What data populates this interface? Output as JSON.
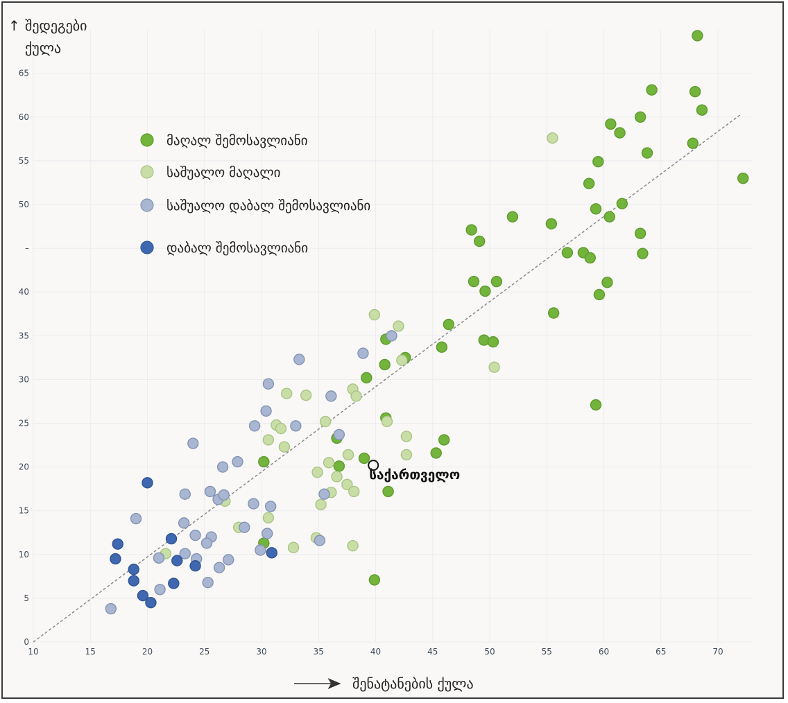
{
  "chart_data": {
    "type": "scatter",
    "title": "",
    "ylabel_line1": "შედეგები",
    "ylabel_line2": "ქულა",
    "xlabel": "შენატანების ქულა",
    "xlim": [
      10,
      73
    ],
    "ylim": [
      0,
      70
    ],
    "xticks": [
      10,
      15,
      20,
      25,
      30,
      35,
      40,
      45,
      50,
      55,
      60,
      65,
      70
    ],
    "yticks": [
      0,
      5,
      10,
      15,
      20,
      25,
      30,
      35,
      40,
      45,
      50,
      55,
      60,
      65
    ],
    "yticks_labels": [
      "0",
      "5",
      "10",
      "15",
      "20",
      "25",
      "30",
      "35",
      "40",
      "–",
      "50",
      "55",
      "60",
      "65"
    ],
    "grid": true,
    "legend_position": "top-left",
    "trendline": {
      "x": [
        10,
        72
      ],
      "y": [
        0,
        60.3
      ]
    },
    "annotation": {
      "label": "საქართველო",
      "x": 39.8,
      "y": 20.2
    },
    "series": [
      {
        "name": "მაღალ შემოსავლიანი",
        "color": "#72b43c",
        "stroke": "#5e9a2e",
        "points": [
          [
            68.2,
            69.3
          ],
          [
            64.2,
            63.1
          ],
          [
            68.0,
            62.9
          ],
          [
            68.6,
            60.8
          ],
          [
            63.2,
            60.0
          ],
          [
            60.6,
            59.2
          ],
          [
            61.4,
            58.2
          ],
          [
            67.8,
            57.0
          ],
          [
            63.8,
            55.9
          ],
          [
            59.5,
            54.9
          ],
          [
            72.2,
            53.0
          ],
          [
            58.7,
            52.4
          ],
          [
            61.6,
            50.1
          ],
          [
            59.3,
            49.5
          ],
          [
            60.5,
            48.6
          ],
          [
            52.0,
            48.6
          ],
          [
            55.4,
            47.8
          ],
          [
            48.4,
            47.1
          ],
          [
            49.1,
            45.8
          ],
          [
            63.2,
            46.7
          ],
          [
            56.8,
            44.5
          ],
          [
            58.2,
            44.5
          ],
          [
            63.4,
            44.4
          ],
          [
            58.8,
            43.9
          ],
          [
            48.6,
            41.2
          ],
          [
            50.6,
            41.2
          ],
          [
            60.3,
            41.1
          ],
          [
            49.6,
            40.1
          ],
          [
            59.6,
            39.7
          ],
          [
            55.6,
            37.6
          ],
          [
            46.4,
            36.3
          ],
          [
            40.9,
            34.6
          ],
          [
            49.5,
            34.5
          ],
          [
            50.3,
            34.3
          ],
          [
            45.8,
            33.7
          ],
          [
            40.8,
            31.7
          ],
          [
            42.6,
            32.5
          ],
          [
            39.2,
            30.2
          ],
          [
            59.3,
            27.1
          ],
          [
            40.9,
            25.6
          ],
          [
            36.6,
            23.3
          ],
          [
            46.0,
            23.1
          ],
          [
            45.3,
            21.6
          ],
          [
            30.2,
            20.6
          ],
          [
            39.0,
            21.0
          ],
          [
            36.8,
            20.1
          ],
          [
            41.1,
            17.2
          ],
          [
            30.2,
            11.3
          ],
          [
            39.9,
            7.1
          ]
        ]
      },
      {
        "name": "საშუალო მაღალი",
        "color": "#c8dea6",
        "stroke": "#a9c486",
        "points": [
          [
            55.5,
            57.6
          ],
          [
            39.9,
            37.4
          ],
          [
            42.0,
            36.1
          ],
          [
            42.3,
            32.2
          ],
          [
            50.4,
            31.4
          ],
          [
            32.2,
            28.4
          ],
          [
            33.9,
            28.2
          ],
          [
            38.0,
            28.9
          ],
          [
            38.3,
            28.1
          ],
          [
            31.3,
            24.8
          ],
          [
            31.7,
            24.4
          ],
          [
            35.6,
            25.2
          ],
          [
            41.0,
            25.2
          ],
          [
            30.6,
            23.1
          ],
          [
            42.7,
            23.5
          ],
          [
            32.0,
            22.3
          ],
          [
            35.9,
            20.5
          ],
          [
            37.6,
            21.4
          ],
          [
            42.7,
            21.4
          ],
          [
            34.9,
            19.4
          ],
          [
            36.6,
            18.9
          ],
          [
            37.5,
            18.0
          ],
          [
            36.1,
            17.1
          ],
          [
            38.1,
            17.2
          ],
          [
            35.2,
            15.7
          ],
          [
            26.8,
            16.1
          ],
          [
            30.6,
            14.2
          ],
          [
            28.0,
            13.1
          ],
          [
            34.8,
            11.9
          ],
          [
            32.8,
            10.8
          ],
          [
            38.0,
            11.0
          ],
          [
            21.6,
            10.1
          ]
        ]
      },
      {
        "name": "საშუალო დაბალ შემოსავლიანი",
        "color": "#a8b6d2",
        "stroke": "#8493b4",
        "points": [
          [
            41.4,
            35.0
          ],
          [
            38.9,
            33.0
          ],
          [
            33.3,
            32.3
          ],
          [
            30.6,
            29.5
          ],
          [
            36.1,
            28.1
          ],
          [
            30.4,
            26.4
          ],
          [
            29.4,
            24.7
          ],
          [
            33.0,
            24.7
          ],
          [
            36.8,
            23.7
          ],
          [
            24.0,
            22.7
          ],
          [
            27.9,
            20.6
          ],
          [
            26.6,
            20.0
          ],
          [
            25.5,
            17.2
          ],
          [
            23.3,
            16.9
          ],
          [
            26.2,
            16.3
          ],
          [
            26.7,
            16.8
          ],
          [
            35.5,
            16.9
          ],
          [
            29.3,
            15.8
          ],
          [
            30.8,
            15.5
          ],
          [
            19.0,
            14.1
          ],
          [
            23.2,
            13.6
          ],
          [
            28.5,
            13.1
          ],
          [
            30.5,
            12.4
          ],
          [
            24.2,
            12.2
          ],
          [
            25.6,
            12.0
          ],
          [
            25.2,
            11.3
          ],
          [
            35.1,
            11.6
          ],
          [
            21.0,
            9.6
          ],
          [
            23.3,
            10.1
          ],
          [
            29.9,
            10.5
          ],
          [
            24.3,
            9.5
          ],
          [
            27.1,
            9.4
          ],
          [
            26.3,
            8.5
          ],
          [
            25.3,
            6.8
          ],
          [
            21.1,
            6.0
          ],
          [
            16.8,
            3.8
          ]
        ]
      },
      {
        "name": "დაბალ შემოსავლიანი",
        "color": "#3f68b0",
        "stroke": "#2f5393",
        "points": [
          [
            20.0,
            18.2
          ],
          [
            17.4,
            11.2
          ],
          [
            22.1,
            11.8
          ],
          [
            17.2,
            9.5
          ],
          [
            22.6,
            9.3
          ],
          [
            24.2,
            8.7
          ],
          [
            18.8,
            8.3
          ],
          [
            18.8,
            7.0
          ],
          [
            22.3,
            6.7
          ],
          [
            19.6,
            5.3
          ],
          [
            20.3,
            4.5
          ],
          [
            30.9,
            10.2
          ]
        ]
      }
    ]
  }
}
